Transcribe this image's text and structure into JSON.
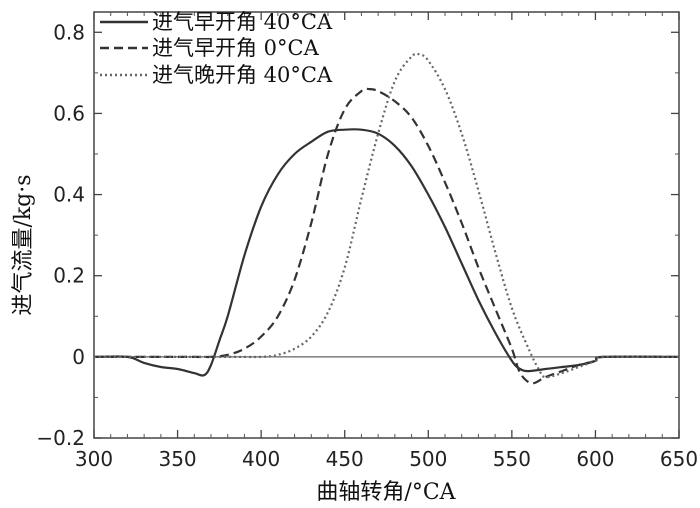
{
  "chart_data": {
    "type": "line",
    "xlabel": "曲轴转角/°CA",
    "ylabel": "进气流量/kg·s",
    "xlim": [
      300,
      650
    ],
    "ylim": [
      -0.2,
      0.85
    ],
    "xticks": [
      "300",
      "350",
      "400",
      "450",
      "500",
      "550",
      "600",
      "650"
    ],
    "yticks": [
      "−0.2",
      "0",
      "0.2",
      "0.4",
      "0.6",
      "0.8"
    ],
    "grid": false,
    "legend_position": "top-left",
    "series": [
      {
        "name": "进气早开角 40°CA",
        "style": "solid",
        "x": [
          300,
          320,
          330,
          340,
          350,
          360,
          366,
          370,
          375,
          380,
          390,
          400,
          410,
          420,
          430,
          440,
          450,
          460,
          470,
          480,
          490,
          500,
          510,
          520,
          530,
          540,
          550,
          555,
          560,
          570,
          580,
          590,
          600,
          605,
          650
        ],
        "y": [
          0,
          0,
          -0.015,
          -0.025,
          -0.03,
          -0.04,
          -0.045,
          -0.02,
          0.04,
          0.1,
          0.25,
          0.37,
          0.45,
          0.5,
          0.53,
          0.555,
          0.56,
          0.56,
          0.55,
          0.52,
          0.47,
          0.4,
          0.32,
          0.23,
          0.14,
          0.06,
          -0.01,
          -0.03,
          -0.035,
          -0.03,
          -0.025,
          -0.02,
          -0.01,
          0,
          0
        ]
      },
      {
        "name": "进气早开角 0°CA",
        "style": "dashed",
        "x": [
          300,
          320,
          340,
          360,
          370,
          380,
          390,
          400,
          410,
          420,
          430,
          440,
          450,
          460,
          465,
          470,
          480,
          490,
          500,
          510,
          520,
          530,
          540,
          550,
          555,
          562,
          570,
          580,
          590,
          600,
          605,
          650
        ],
        "y": [
          0,
          0,
          0,
          0,
          0,
          0.005,
          0.02,
          0.05,
          0.1,
          0.19,
          0.33,
          0.5,
          0.61,
          0.655,
          0.66,
          0.655,
          0.63,
          0.59,
          0.52,
          0.43,
          0.33,
          0.22,
          0.12,
          0.02,
          -0.04,
          -0.065,
          -0.05,
          -0.035,
          -0.02,
          -0.01,
          0,
          0
        ]
      },
      {
        "name": "进气晚开角 40°CA",
        "style": "dotted",
        "x": [
          300,
          380,
          400,
          410,
          420,
          430,
          440,
          450,
          460,
          470,
          480,
          490,
          495,
          500,
          510,
          520,
          530,
          540,
          550,
          560,
          566,
          570,
          580,
          590,
          600,
          605,
          650
        ],
        "y": [
          0,
          0,
          0,
          0.005,
          0.02,
          0.05,
          0.11,
          0.22,
          0.39,
          0.55,
          0.68,
          0.74,
          0.745,
          0.73,
          0.66,
          0.55,
          0.41,
          0.26,
          0.12,
          0.02,
          -0.03,
          -0.05,
          -0.04,
          -0.025,
          -0.01,
          0,
          0
        ]
      }
    ]
  }
}
